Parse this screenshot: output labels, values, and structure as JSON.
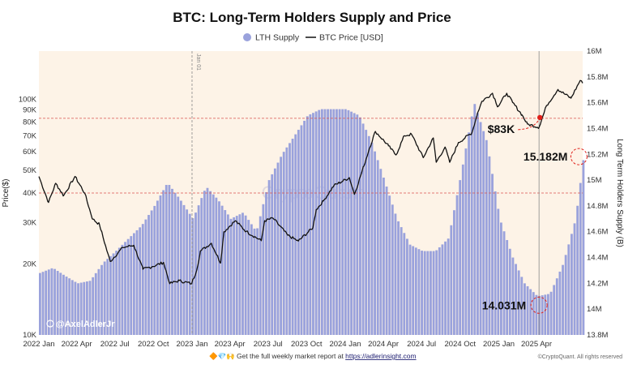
{
  "chart_data": {
    "type": "bar",
    "title": "BTC: Long-Term Holders Supply and Price",
    "legend": {
      "placement": "top-center",
      "items": [
        {
          "label": "LTH Supply",
          "marker": "dot",
          "color": "#9aa2dc"
        },
        {
          "label": "BTC Price [USD]",
          "marker": "line",
          "color": "#111111"
        }
      ]
    },
    "ylabel_left": "Price($)",
    "ylabel_right": "Long Term Holders Supply (B)",
    "left_axis": {
      "scale": "log",
      "range": [
        10000,
        160000
      ],
      "ticks": [
        "10K",
        "20K",
        "30K",
        "40K",
        "50K",
        "60K",
        "70K",
        "80K",
        "90K",
        "100K"
      ],
      "tick_values": [
        10000,
        20000,
        30000,
        40000,
        50000,
        60000,
        70000,
        80000,
        90000,
        100000
      ]
    },
    "right_axis": {
      "scale": "linear",
      "range": [
        13.8,
        16.0
      ],
      "ticks": [
        "13.8M",
        "14M",
        "14.2M",
        "14.4M",
        "14.6M",
        "14.8M",
        "15M",
        "15.2M",
        "15.4M",
        "15.6M",
        "15.8M",
        "16M"
      ],
      "tick_values": [
        13.8,
        14.0,
        14.2,
        14.4,
        14.6,
        14.8,
        15.0,
        15.2,
        15.4,
        15.6,
        15.8,
        16.0
      ]
    },
    "x_axis": {
      "range": [
        "2022-01-01",
        "2025-07-20"
      ],
      "ticks": [
        "2022 Jan",
        "2022 Apr",
        "2022 Jul",
        "2022 Oct",
        "2023 Jan",
        "2023 Apr",
        "2023 Jul",
        "2023 Oct",
        "2024 Jan",
        "2024 Apr",
        "2024 Jul",
        "2024 Oct",
        "2025 Jan",
        "2025 Apr"
      ],
      "tick_dates": [
        "2022-01-01",
        "2022-04-01",
        "2022-07-01",
        "2022-10-01",
        "2023-01-01",
        "2023-04-01",
        "2023-07-01",
        "2023-10-01",
        "2024-01-01",
        "2024-04-01",
        "2024-07-01",
        "2024-10-01",
        "2025-01-01",
        "2025-04-01"
      ]
    },
    "grid": false,
    "reference_lines": [
      {
        "axis": "left",
        "value": 83000,
        "style": "dashed",
        "color": "#d9534f"
      },
      {
        "axis": "right",
        "value": 14.9,
        "style": "dashed",
        "color": "#d9534f"
      },
      {
        "axis": "x",
        "value": "2023-01-01",
        "style": "dashed",
        "color": "#888888",
        "label": "Jan 01"
      },
      {
        "axis": "x",
        "value": "2025-04-07",
        "style": "solid",
        "color": "#888888"
      }
    ],
    "annotations": [
      {
        "text": "$83K",
        "axis": "left",
        "x": "2025-04-07",
        "y": 81000
      },
      {
        "text": "15.182M",
        "axis": "right",
        "x": "2025-07-15",
        "y": 15.182
      },
      {
        "text": "14.031M",
        "axis": "right",
        "x": "2025-04-07",
        "y": 14.031
      }
    ],
    "series": [
      {
        "name": "LTH Supply",
        "type": "bar",
        "axis": "right",
        "color": "#9aa2dc",
        "x": [
          "2022-01-01",
          "2022-02-01",
          "2022-03-01",
          "2022-04-01",
          "2022-05-01",
          "2022-06-01",
          "2022-07-01",
          "2022-08-01",
          "2022-09-01",
          "2022-10-01",
          "2022-11-01",
          "2022-12-01",
          "2023-01-01",
          "2023-02-01",
          "2023-03-01",
          "2023-04-01",
          "2023-05-01",
          "2023-06-01",
          "2023-07-01",
          "2023-08-01",
          "2023-09-01",
          "2023-10-01",
          "2023-11-01",
          "2023-12-01",
          "2024-01-01",
          "2024-02-01",
          "2024-03-01",
          "2024-04-01",
          "2024-05-01",
          "2024-06-01",
          "2024-07-01",
          "2024-08-01",
          "2024-09-01",
          "2024-10-01",
          "2024-11-01",
          "2024-12-01",
          "2025-01-01",
          "2025-02-01",
          "2025-03-01",
          "2025-04-01",
          "2025-05-01",
          "2025-06-01",
          "2025-07-01",
          "2025-07-20"
        ],
        "values": [
          14.28,
          14.32,
          14.26,
          14.2,
          14.22,
          14.36,
          14.45,
          14.55,
          14.65,
          14.8,
          14.98,
          14.85,
          14.7,
          14.95,
          14.85,
          14.7,
          14.75,
          14.6,
          15.0,
          15.2,
          15.35,
          15.5,
          15.55,
          15.55,
          15.55,
          15.5,
          15.3,
          15.0,
          14.7,
          14.5,
          14.45,
          14.45,
          14.55,
          15.05,
          15.6,
          15.3,
          14.7,
          14.4,
          14.2,
          14.1,
          14.12,
          14.35,
          14.7,
          15.18
        ]
      },
      {
        "name": "BTC Price [USD]",
        "type": "line",
        "axis": "left",
        "color": "#111111",
        "x": [
          "2022-01-01",
          "2022-01-24",
          "2022-02-10",
          "2022-03-01",
          "2022-03-28",
          "2022-04-20",
          "2022-05-09",
          "2022-05-25",
          "2022-06-13",
          "2022-06-20",
          "2022-07-20",
          "2022-08-15",
          "2022-09-06",
          "2022-09-28",
          "2022-10-25",
          "2022-11-09",
          "2022-12-01",
          "2022-12-31",
          "2023-01-12",
          "2023-01-21",
          "2023-02-16",
          "2023-03-10",
          "2023-03-18",
          "2023-04-14",
          "2023-05-10",
          "2023-06-15",
          "2023-06-23",
          "2023-07-13",
          "2023-08-17",
          "2023-09-11",
          "2023-10-16",
          "2023-10-24",
          "2023-11-10",
          "2023-12-05",
          "2024-01-11",
          "2024-01-23",
          "2024-02-14",
          "2024-02-28",
          "2024-03-13",
          "2024-04-13",
          "2024-05-01",
          "2024-05-21",
          "2024-06-07",
          "2024-07-05",
          "2024-07-29",
          "2024-08-05",
          "2024-08-26",
          "2024-09-06",
          "2024-09-27",
          "2024-10-29",
          "2024-11-12",
          "2024-11-22",
          "2024-12-17",
          "2024-12-30",
          "2025-01-20",
          "2025-02-03",
          "2025-02-25",
          "2025-03-10",
          "2025-04-07",
          "2025-04-25",
          "2025-05-22",
          "2025-06-22",
          "2025-07-14",
          "2025-07-20"
        ],
        "values": [
          47000,
          36500,
          44000,
          39000,
          47000,
          40000,
          31000,
          29500,
          22500,
          20500,
          23500,
          24000,
          19000,
          19500,
          20300,
          16500,
          17000,
          16500,
          18800,
          22700,
          24500,
          20200,
          27400,
          30500,
          27500,
          25100,
          30500,
          31300,
          26500,
          25000,
          28500,
          34000,
          37000,
          43000,
          46500,
          39500,
          51800,
          62000,
          73000,
          63500,
          58000,
          70000,
          71000,
          56500,
          68500,
          54000,
          62700,
          54000,
          65500,
          72000,
          88000,
          98000,
          106000,
          93000,
          106000,
          97000,
          86000,
          78500,
          76000,
          94000,
          110000,
          101000,
          120000,
          117000
        ]
      }
    ]
  },
  "watermark": "CryptoQuant",
  "author": "@AxelAdlerJr",
  "footer": {
    "emoji": "🔶💎🙌",
    "text": "Get the full weekly market report at ",
    "link": "https://adlerinsight.com"
  },
  "credit": "©CryptoQuant. All rights reserved"
}
